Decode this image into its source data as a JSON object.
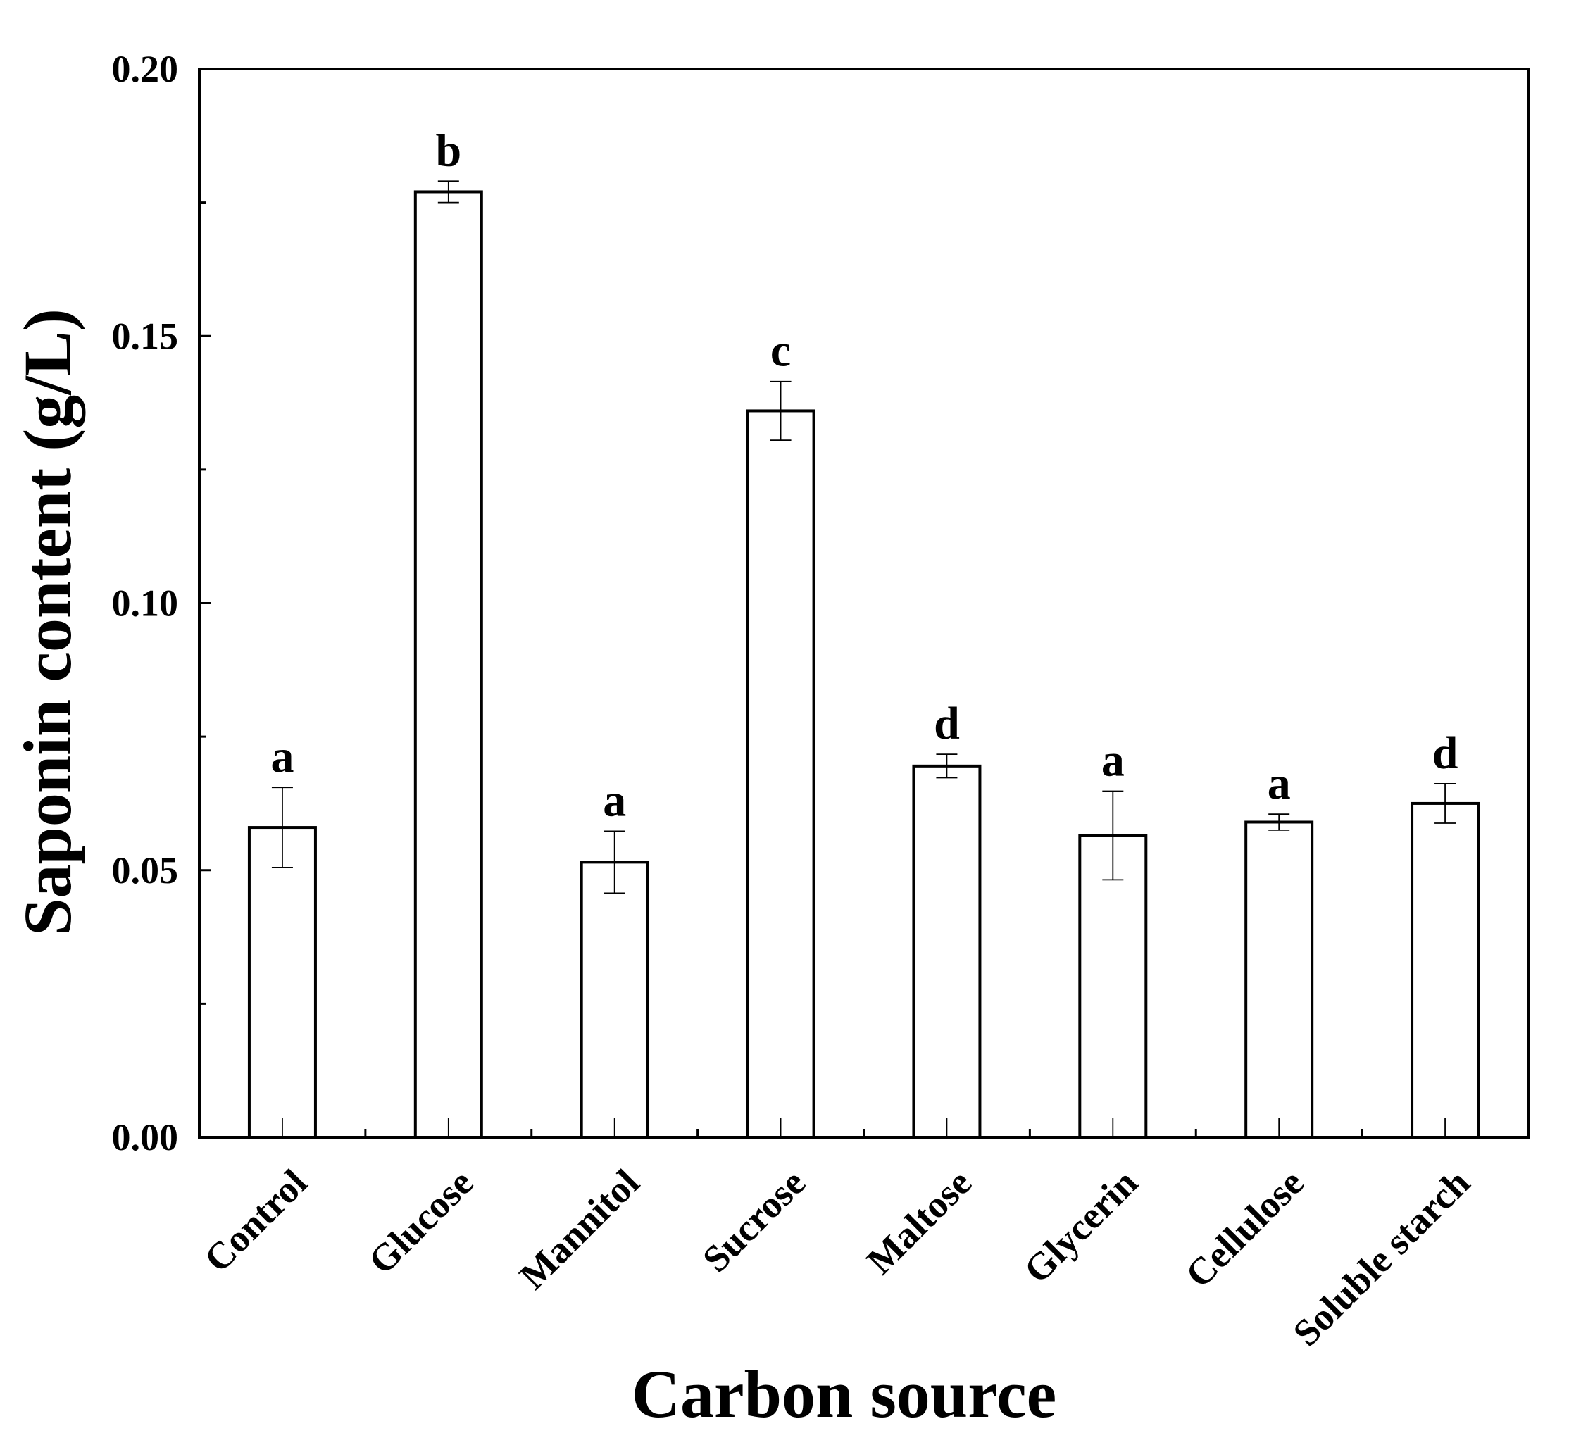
{
  "chart_data": {
    "type": "bar",
    "xlabel": "Carbon source",
    "ylabel": "Saponin content (g/L)",
    "ylim": [
      0,
      0.2
    ],
    "yticks": [
      "0.00",
      "0.05",
      "0.10",
      "0.15",
      "0.20"
    ],
    "grid": false,
    "categories": [
      "Control",
      "Glucose",
      "Mannitol",
      "Sucrose",
      "Maltose",
      "Glycerin",
      "Cellulose",
      "Soluble starch"
    ],
    "values": [
      0.058,
      0.177,
      0.0515,
      0.136,
      0.0695,
      0.0565,
      0.059,
      0.0625
    ],
    "errors": [
      0.0075,
      0.002,
      0.0058,
      0.0055,
      0.0022,
      0.0083,
      0.0015,
      0.0037
    ],
    "significance": [
      "a",
      "b",
      "a",
      "c",
      "d",
      "a",
      "a",
      "d"
    ]
  }
}
